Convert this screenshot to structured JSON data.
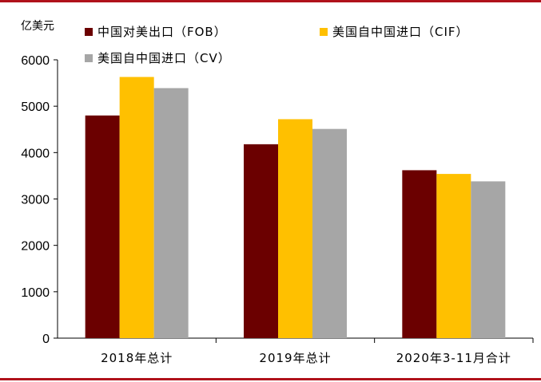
{
  "chart_data": {
    "type": "bar",
    "unit_label": "亿美元",
    "categories": [
      "2018年总计",
      "2019年总计",
      "2020年3-11月合计"
    ],
    "series": [
      {
        "name": "中国对美出口（FOB）",
        "color": "#6b0000",
        "values": [
          4800,
          4180,
          3620
        ]
      },
      {
        "name": "美国自中国进口（CIF）",
        "color": "#ffc000",
        "values": [
          5630,
          4720,
          3540
        ]
      },
      {
        "name": "美国自中国进口（CV）",
        "color": "#a6a6a6",
        "values": [
          5390,
          4510,
          3380
        ]
      }
    ],
    "ylim": [
      0,
      6000
    ],
    "yticks": [
      0,
      1000,
      2000,
      3000,
      4000,
      5000,
      6000
    ],
    "xlabel": "",
    "ylabel": ""
  },
  "frame": {
    "accent": "#b0121b"
  }
}
